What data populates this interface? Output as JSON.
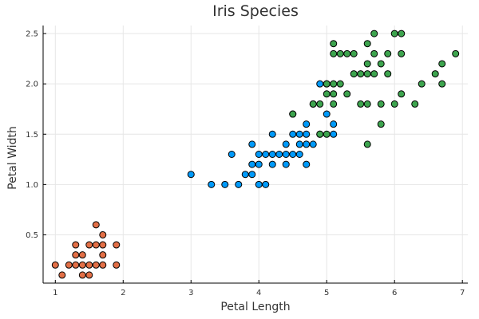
{
  "chart_data": {
    "type": "scatter",
    "title": "Iris Species",
    "xlabel": "Petal Length",
    "ylabel": "Petal Width",
    "xlim": [
      0.82,
      7.08
    ],
    "ylim": [
      0.02,
      2.58
    ],
    "xticks": [
      1,
      2,
      3,
      4,
      5,
      6,
      7
    ],
    "yticks": [
      0.5,
      1.0,
      1.5,
      2.0,
      2.5
    ],
    "ytick_labels": [
      "0.5",
      "1.0",
      "1.5",
      "2.0",
      "2.5"
    ],
    "grid": true,
    "legend": "none",
    "series": [
      {
        "color": "#E26F46",
        "points": [
          [
            1.0,
            0.2
          ],
          [
            1.1,
            0.1
          ],
          [
            1.2,
            0.2
          ],
          [
            1.3,
            0.2
          ],
          [
            1.3,
            0.3
          ],
          [
            1.3,
            0.4
          ],
          [
            1.4,
            0.1
          ],
          [
            1.4,
            0.2
          ],
          [
            1.4,
            0.3
          ],
          [
            1.5,
            0.1
          ],
          [
            1.5,
            0.2
          ],
          [
            1.5,
            0.4
          ],
          [
            1.6,
            0.2
          ],
          [
            1.6,
            0.4
          ],
          [
            1.6,
            0.6
          ],
          [
            1.7,
            0.2
          ],
          [
            1.7,
            0.3
          ],
          [
            1.7,
            0.4
          ],
          [
            1.7,
            0.5
          ],
          [
            1.9,
            0.2
          ],
          [
            1.9,
            0.4
          ]
        ]
      },
      {
        "color": "#009AFA",
        "points": [
          [
            3.0,
            1.1
          ],
          [
            3.3,
            1.0
          ],
          [
            3.5,
            1.0
          ],
          [
            3.6,
            1.3
          ],
          [
            3.7,
            1.0
          ],
          [
            3.8,
            1.1
          ],
          [
            3.9,
            1.1
          ],
          [
            3.9,
            1.2
          ],
          [
            3.9,
            1.4
          ],
          [
            4.0,
            1.0
          ],
          [
            4.0,
            1.2
          ],
          [
            4.0,
            1.3
          ],
          [
            4.1,
            1.0
          ],
          [
            4.1,
            1.3
          ],
          [
            4.2,
            1.2
          ],
          [
            4.2,
            1.3
          ],
          [
            4.2,
            1.5
          ],
          [
            4.3,
            1.3
          ],
          [
            4.4,
            1.2
          ],
          [
            4.4,
            1.3
          ],
          [
            4.4,
            1.4
          ],
          [
            4.5,
            1.3
          ],
          [
            4.5,
            1.5
          ],
          [
            4.5,
            1.7
          ],
          [
            4.6,
            1.3
          ],
          [
            4.6,
            1.4
          ],
          [
            4.6,
            1.5
          ],
          [
            4.7,
            1.2
          ],
          [
            4.7,
            1.4
          ],
          [
            4.7,
            1.5
          ],
          [
            4.7,
            1.6
          ],
          [
            4.8,
            1.4
          ],
          [
            4.8,
            1.8
          ],
          [
            4.9,
            1.5
          ],
          [
            4.9,
            2.0
          ],
          [
            5.0,
            1.7
          ],
          [
            5.0,
            2.0
          ],
          [
            5.1,
            1.5
          ],
          [
            5.1,
            1.6
          ]
        ]
      },
      {
        "color": "#3DA44E",
        "points": [
          [
            4.5,
            1.7
          ],
          [
            4.8,
            1.8
          ],
          [
            4.9,
            1.8
          ],
          [
            4.9,
            1.5
          ],
          [
            5.0,
            1.5
          ],
          [
            5.0,
            1.9
          ],
          [
            5.0,
            2.0
          ],
          [
            5.1,
            1.8
          ],
          [
            5.1,
            1.9
          ],
          [
            5.1,
            2.0
          ],
          [
            5.1,
            2.3
          ],
          [
            5.1,
            2.4
          ],
          [
            5.2,
            2.0
          ],
          [
            5.2,
            2.3
          ],
          [
            5.3,
            1.9
          ],
          [
            5.3,
            2.3
          ],
          [
            5.4,
            2.1
          ],
          [
            5.4,
            2.3
          ],
          [
            5.5,
            1.8
          ],
          [
            5.5,
            2.1
          ],
          [
            5.6,
            1.4
          ],
          [
            5.6,
            1.8
          ],
          [
            5.6,
            2.1
          ],
          [
            5.6,
            2.2
          ],
          [
            5.6,
            2.4
          ],
          [
            5.7,
            2.1
          ],
          [
            5.7,
            2.3
          ],
          [
            5.7,
            2.5
          ],
          [
            5.8,
            1.6
          ],
          [
            5.8,
            1.8
          ],
          [
            5.8,
            2.2
          ],
          [
            5.9,
            2.1
          ],
          [
            5.9,
            2.3
          ],
          [
            6.0,
            1.8
          ],
          [
            6.0,
            2.5
          ],
          [
            6.1,
            1.9
          ],
          [
            6.1,
            2.3
          ],
          [
            6.1,
            2.5
          ],
          [
            6.3,
            1.8
          ],
          [
            6.4,
            2.0
          ],
          [
            6.6,
            2.1
          ],
          [
            6.7,
            2.0
          ],
          [
            6.7,
            2.2
          ],
          [
            6.9,
            2.3
          ]
        ]
      }
    ]
  }
}
